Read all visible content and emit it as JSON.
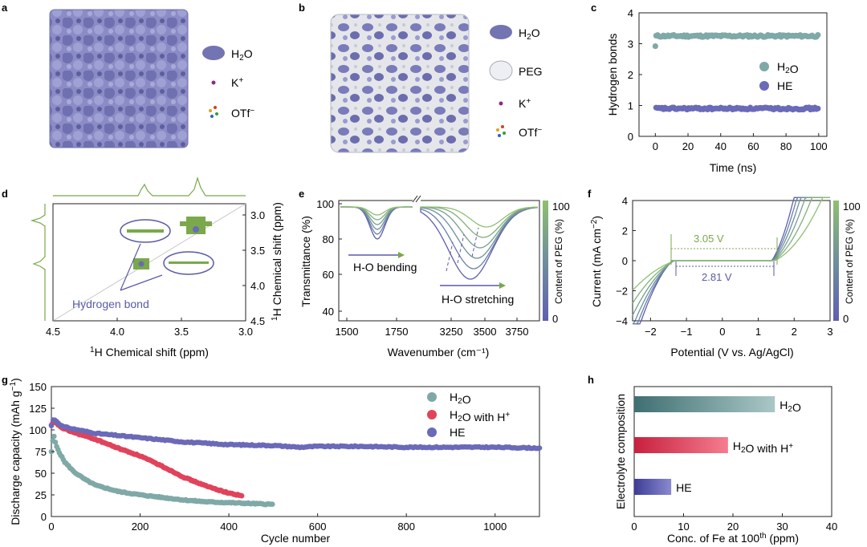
{
  "panels": {
    "a": {
      "label": "a",
      "legend": [
        {
          "text": "H2O",
          "icon": "water-blob-icon"
        },
        {
          "text": "K+",
          "icon": "potassium-dot-icon"
        },
        {
          "text": "OTf−",
          "icon": "otf-molecule-icon"
        }
      ]
    },
    "b": {
      "label": "b",
      "legend": [
        {
          "text": "H2O",
          "icon": "water-blob-icon"
        },
        {
          "text": "PEG",
          "icon": "peg-cloud-icon"
        },
        {
          "text": "K+",
          "icon": "potassium-dot-icon"
        },
        {
          "text": "OTf−",
          "icon": "otf-molecule-icon"
        }
      ]
    },
    "d": {
      "label": "d",
      "xlabel_sup": "1",
      "xlabel": "H Chemical shift (ppm)",
      "ylabel_sup": "1",
      "ylabel": "H Chemical shift (ppm)",
      "annotation": "Hydrogen bond",
      "ticks": [
        "4.5",
        "4.0",
        "3.5",
        "3.0"
      ],
      "yticks": [
        "3.0",
        "3.5",
        "4.0",
        "4.5"
      ]
    },
    "e": {
      "label": "e",
      "xlabel": "Wavenumber (cm⁻¹)",
      "ylabel": "Transmittance (%)",
      "xticks_left": [
        "1500",
        "1750"
      ],
      "xticks_right": [
        "3250",
        "3500",
        "3750"
      ],
      "yticks": [
        "40",
        "60",
        "80",
        "100"
      ],
      "annotations": [
        "H-O bending",
        "H-O stretching"
      ],
      "colorbar_label": "Content of PEG (%)",
      "colorbar_ticks": [
        "0",
        "100"
      ]
    },
    "f": {
      "label": "f",
      "xlabel": "Potential (V vs. Ag/AgCl)",
      "ylabel_main": "Current (mA cm",
      "ylabel_sup": "−2",
      "ylabel_end": ")",
      "xticks": [
        "−2",
        "−1",
        "0",
        "1",
        "2",
        "3"
      ],
      "yticks": [
        "−4",
        "−2",
        "0",
        "2",
        "4"
      ],
      "annotations": [
        "3.05 V",
        "2.81 V"
      ],
      "colorbar_label": "Content of PEG (%)",
      "colorbar_ticks": [
        "0",
        "100"
      ]
    }
  },
  "chart_data": [
    {
      "id": "c",
      "type": "scatter",
      "panel_label": "c",
      "xlabel": "Time (ns)",
      "ylabel": "Hydrogen bonds",
      "xlim": [
        -10,
        105
      ],
      "ylim": [
        0,
        4
      ],
      "xticks": [
        0,
        20,
        40,
        60,
        80,
        100
      ],
      "yticks": [
        0,
        1,
        2,
        3,
        4
      ],
      "legend_position": "right-middle",
      "series": [
        {
          "name": "H2O",
          "color": "#7fa9a6",
          "x_range": [
            0,
            100
          ],
          "mean": 3.25,
          "first_point": [
            0,
            2.92
          ]
        },
        {
          "name": "HE",
          "color": "#6a6ab8",
          "x_range": [
            0,
            100
          ],
          "mean": 0.9
        }
      ]
    },
    {
      "id": "g",
      "type": "scatter",
      "panel_label": "g",
      "xlabel": "Cycle number",
      "ylabel_main": "Discharge capacity (mAh g",
      "ylabel_sup": "−1",
      "ylabel_end": ")",
      "xlim": [
        0,
        1100
      ],
      "ylim": [
        0,
        150
      ],
      "xticks": [
        0,
        200,
        400,
        600,
        800,
        1000
      ],
      "yticks": [
        0,
        25,
        50,
        75,
        100,
        125,
        150
      ],
      "legend_position": "top-right",
      "series": [
        {
          "name": "H2O",
          "color": "#7fa9a6",
          "x": [
            0,
            5,
            10,
            20,
            30,
            50,
            75,
            100,
            150,
            200,
            250,
            300,
            350,
            400,
            450,
            500
          ],
          "y": [
            75,
            95,
            83,
            72,
            63,
            52,
            43,
            36,
            29,
            25,
            22,
            19,
            17,
            16,
            15,
            14
          ]
        },
        {
          "name": "H2O with H+",
          "color": "#e0435a",
          "x": [
            0,
            5,
            25,
            50,
            100,
            150,
            200,
            250,
            300,
            350,
            400,
            430
          ],
          "y": [
            105,
            110,
            102,
            97,
            89,
            79,
            70,
            58,
            45,
            35,
            27,
            24
          ]
        },
        {
          "name": "HE",
          "color": "#6a6ab8",
          "x": [
            0,
            5,
            25,
            50,
            100,
            200,
            300,
            400,
            500,
            560,
            600,
            700,
            800,
            900,
            1000,
            1100
          ],
          "y": [
            105,
            113,
            104,
            101,
            96,
            91,
            86,
            83,
            82,
            80,
            81,
            81,
            80,
            80,
            80,
            79
          ]
        }
      ]
    },
    {
      "id": "h",
      "type": "bar",
      "orientation": "horizontal",
      "panel_label": "h",
      "xlabel_main": "Conc. of Fe at 100",
      "xlabel_sup": "th",
      "xlabel_end": " (ppm)",
      "ylabel": "Electrolyte composition",
      "xlim": [
        0,
        40
      ],
      "xticks": [
        0,
        10,
        20,
        30,
        40
      ],
      "categories": [
        "H2O",
        "H2O with H+",
        "HE"
      ],
      "values": [
        28.5,
        19,
        7.5
      ],
      "colors": [
        [
          "#3f6f72",
          "#a9c7c6"
        ],
        [
          "#c8203e",
          "#f47d8e"
        ],
        [
          "#3c3c96",
          "#8a8ad0"
        ]
      ]
    }
  ]
}
